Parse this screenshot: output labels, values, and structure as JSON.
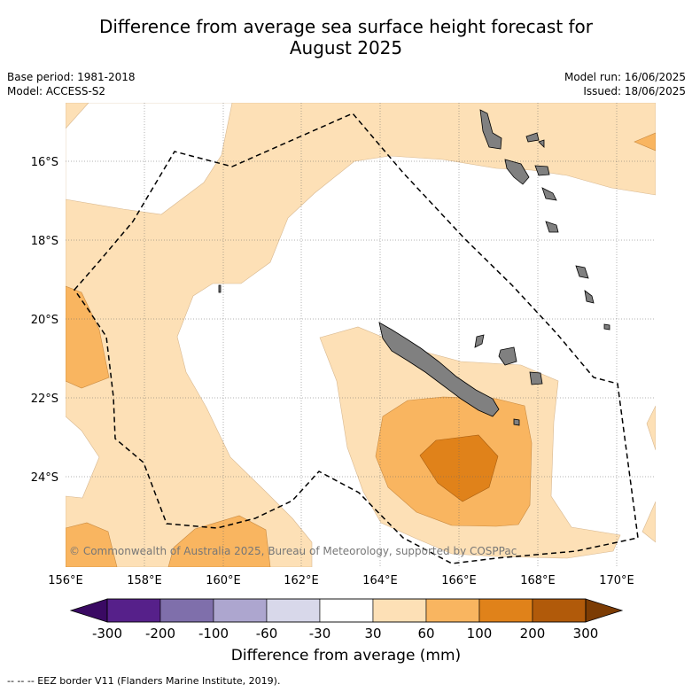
{
  "title_line1": "Difference from average sea surface height forecast for",
  "title_line2": "August 2025",
  "meta": {
    "base_period": "Base period: 1981-2018",
    "model": "Model: ACCESS-S2",
    "model_run": "Model run: 16/06/2025",
    "issued": "Issued: 18/06/2025"
  },
  "lat_labels": [
    "16°S",
    "18°S",
    "20°S",
    "22°S",
    "24°S"
  ],
  "lon_labels": [
    "156°E",
    "158°E",
    "160°E",
    "162°E",
    "164°E",
    "166°E",
    "168°E",
    "170°E"
  ],
  "copyright": "© Commonwealth of Australia 2025, Bureau of Meteorology, supported by COSPPac",
  "colorbar": {
    "ticks": [
      "-300",
      "-200",
      "-100",
      "-60",
      "-30",
      "30",
      "60",
      "100",
      "200",
      "300"
    ],
    "colors": [
      "#56208a",
      "#7f6fab",
      "#ada6cf",
      "#d8d8ea",
      "#ffffff",
      "#fde0b6",
      "#f9b560",
      "#e0821a",
      "#b15a0a"
    ],
    "low_extend_color": "#3a0a63",
    "high_extend_color": "#7c3c04",
    "label": "Difference from average (mm)"
  },
  "footnote": "--  --  -- EEZ border V11 (Flanders Marine Institute, 2019)."
}
